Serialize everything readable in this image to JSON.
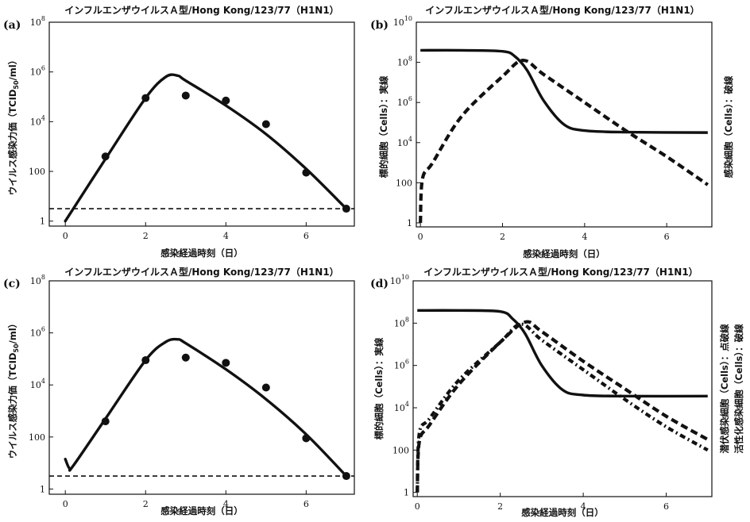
{
  "chart_data": [
    {
      "panel": "(a)",
      "type": "line",
      "title": "インフルエンザウイルスＡ型/Hong Kong/123/77（H1N1）",
      "xlabel": "感染経過時刻（日）",
      "ylabel": "ウイルス感染力価（TCID50/ml）",
      "ylabel_sub": "50",
      "y_scale": "log",
      "xlim": [
        -0.4,
        7.2
      ],
      "ylim_exp": [
        -0.2,
        8
      ],
      "xticks": [
        "0",
        "2",
        "4",
        "6"
      ],
      "yticks": [
        {
          "base": "1",
          "exp": ""
        },
        {
          "base": "100",
          "exp": ""
        },
        {
          "base": "10",
          "exp": "4"
        },
        {
          "base": "10",
          "exp": "6"
        },
        {
          "base": "10",
          "exp": "8"
        }
      ],
      "points_exp": [
        [
          1,
          2.6
        ],
        [
          2,
          4.95
        ],
        [
          3,
          5.05
        ],
        [
          4,
          4.85
        ],
        [
          5,
          3.9
        ],
        [
          6,
          1.95
        ],
        [
          7,
          0.5
        ]
      ],
      "curve_exp": [
        [
          0,
          0
        ],
        [
          1,
          2.5
        ],
        [
          2,
          4.95
        ],
        [
          2.5,
          5.8
        ],
        [
          2.8,
          5.85
        ],
        [
          3,
          5.65
        ],
        [
          4,
          4.65
        ],
        [
          5,
          3.5
        ],
        [
          6,
          2.1
        ],
        [
          7,
          0.5
        ]
      ],
      "detection_limit_exp": 0.5
    },
    {
      "panel": "(b)",
      "type": "line",
      "title": "インフルエンザウイルスＡ型/Hong Kong/123/77（H1N1）",
      "xlabel": "感染経過時刻（日）",
      "ylabel": "標的細胞（Cells）：実線",
      "ylabel_right": "感染細胞（Cells）：破線",
      "y_scale": "log",
      "xlim": [
        -0.1,
        7.1
      ],
      "ylim_exp": [
        -0.2,
        10
      ],
      "xticks": [
        "0",
        "2",
        "4",
        "6"
      ],
      "yticks": [
        {
          "base": "1",
          "exp": ""
        },
        {
          "base": "100",
          "exp": ""
        },
        {
          "base": "10",
          "exp": "4"
        },
        {
          "base": "10",
          "exp": "6"
        },
        {
          "base": "10",
          "exp": "8"
        },
        {
          "base": "10",
          "exp": "10"
        }
      ],
      "series": [
        {
          "style": "solid",
          "points_exp": [
            [
              0,
              8.6
            ],
            [
              1,
              8.6
            ],
            [
              2,
              8.55
            ],
            [
              2.3,
              8.3
            ],
            [
              2.6,
              7.6
            ],
            [
              3,
              6.1
            ],
            [
              3.5,
              4.9
            ],
            [
              4,
              4.6
            ],
            [
              5,
              4.52
            ],
            [
              7,
              4.5
            ]
          ]
        },
        {
          "style": "dashed",
          "points_exp": [
            [
              0,
              0
            ],
            [
              0.05,
              2.2
            ],
            [
              0.3,
              3.0
            ],
            [
              1,
              5.3
            ],
            [
              2,
              7.3
            ],
            [
              2.5,
              8.1
            ],
            [
              3,
              7.4
            ],
            [
              4,
              6.0
            ],
            [
              5,
              4.6
            ],
            [
              6,
              3.3
            ],
            [
              7,
              1.9
            ]
          ]
        }
      ]
    },
    {
      "panel": "(c)",
      "type": "line",
      "title": "インフルエンザウイルスＡ型/Hong Kong/123/77（H1N1）",
      "xlabel": "感染経過時刻（日）",
      "ylabel": "ウイルス感染力価（TCID50/ml）",
      "ylabel_sub": "50",
      "y_scale": "log",
      "xlim": [
        -0.4,
        7.2
      ],
      "ylim_exp": [
        -0.2,
        8
      ],
      "xticks": [
        "0",
        "2",
        "4",
        "6"
      ],
      "yticks": [
        {
          "base": "1",
          "exp": ""
        },
        {
          "base": "100",
          "exp": ""
        },
        {
          "base": "10",
          "exp": "4"
        },
        {
          "base": "10",
          "exp": "6"
        },
        {
          "base": "10",
          "exp": "8"
        }
      ],
      "points_exp": [
        [
          1,
          2.6
        ],
        [
          2,
          4.95
        ],
        [
          3,
          5.05
        ],
        [
          4,
          4.85
        ],
        [
          5,
          3.9
        ],
        [
          6,
          1.95
        ],
        [
          7,
          0.5
        ]
      ],
      "curve_exp": [
        [
          0,
          1.15
        ],
        [
          0.1,
          0.8
        ],
        [
          0.2,
          0.9
        ],
        [
          1,
          2.7
        ],
        [
          2,
          4.95
        ],
        [
          2.5,
          5.65
        ],
        [
          2.8,
          5.75
        ],
        [
          3,
          5.6
        ],
        [
          4,
          4.6
        ],
        [
          5,
          3.45
        ],
        [
          6,
          2.1
        ],
        [
          7,
          0.5
        ]
      ],
      "detection_limit_exp": 0.5
    },
    {
      "panel": "(d)",
      "type": "line",
      "title": "インフルエンザウイルスＡ型/Hong Kong/123/77（H1N1）",
      "xlabel": "感染経過時刻（日）",
      "ylabel": "標的細胞（Cells）：実線",
      "ylabel_right_1": "潜伏感染細胞（Cells）：点破線",
      "ylabel_right_2": "活性化感染細胞（Cells）：破線",
      "y_scale": "log",
      "xlim": [
        -0.1,
        7.1
      ],
      "ylim_exp": [
        -0.2,
        10
      ],
      "xticks": [
        "0",
        "2",
        "4",
        "6"
      ],
      "yticks": [
        {
          "base": "1",
          "exp": ""
        },
        {
          "base": "100",
          "exp": ""
        },
        {
          "base": "10",
          "exp": "4"
        },
        {
          "base": "10",
          "exp": "6"
        },
        {
          "base": "10",
          "exp": "8"
        },
        {
          "base": "10",
          "exp": "10"
        }
      ],
      "series": [
        {
          "style": "solid",
          "points_exp": [
            [
              0,
              8.6
            ],
            [
              1,
              8.6
            ],
            [
              2,
              8.55
            ],
            [
              2.3,
              8.2
            ],
            [
              2.6,
              7.5
            ],
            [
              3,
              6.0
            ],
            [
              3.5,
              4.85
            ],
            [
              4,
              4.6
            ],
            [
              5,
              4.55
            ],
            [
              7,
              4.55
            ]
          ]
        },
        {
          "style": "dashdot",
          "points_exp": [
            [
              0,
              0
            ],
            [
              0.05,
              2.8
            ],
            [
              0.3,
              3.5
            ],
            [
              1,
              5.3
            ],
            [
              2,
              7.1
            ],
            [
              2.5,
              7.95
            ],
            [
              3,
              7.2
            ],
            [
              4,
              5.8
            ],
            [
              5,
              4.4
            ],
            [
              6,
              3.1
            ],
            [
              7,
              2.0
            ]
          ]
        },
        {
          "style": "dashed",
          "points_exp": [
            [
              0,
              0
            ],
            [
              0.05,
              2.4
            ],
            [
              0.3,
              3.2
            ],
            [
              1,
              5.1
            ],
            [
              2,
              7.1
            ],
            [
              2.6,
              8.05
            ],
            [
              3,
              7.6
            ],
            [
              4,
              6.2
            ],
            [
              5,
              4.9
            ],
            [
              6,
              3.6
            ],
            [
              7,
              2.5
            ]
          ]
        }
      ]
    }
  ]
}
